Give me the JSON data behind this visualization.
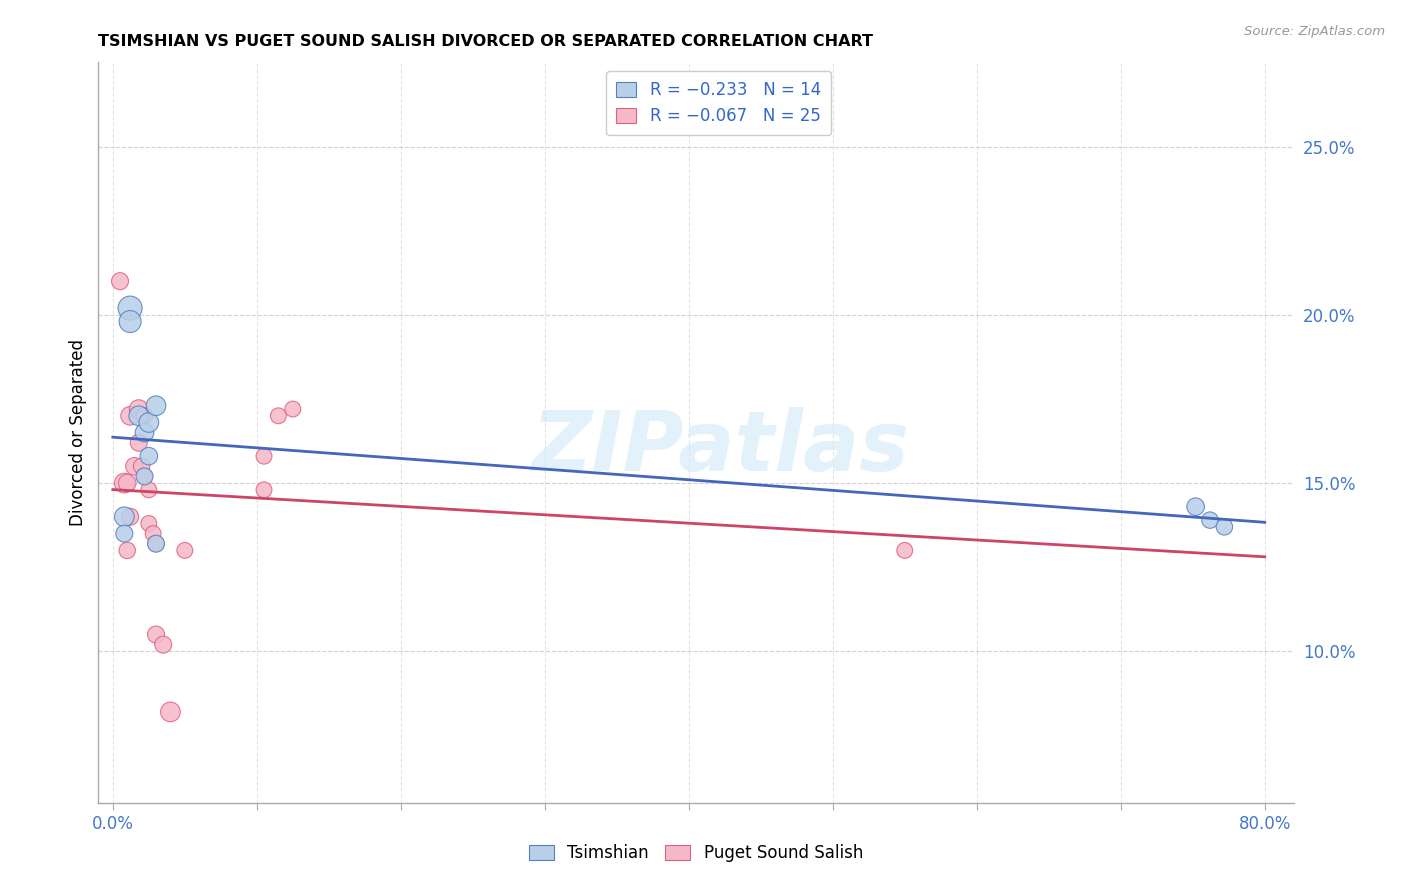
{
  "title": "TSIMSHIAN VS PUGET SOUND SALISH DIVORCED OR SEPARATED CORRELATION CHART",
  "source": "Source: ZipAtlas.com",
  "ylabel": "Divorced or Separated",
  "legend_labels": [
    "Tsimshian",
    "Puget Sound Salish"
  ],
  "legend_r": [
    "R = −0.233",
    "R = −0.067"
  ],
  "legend_n": [
    "N = 14",
    "N = 25"
  ],
  "xlim": [
    -0.01,
    0.82
  ],
  "ylim": [
    0.055,
    0.275
  ],
  "yticks": [
    0.1,
    0.15,
    0.2,
    0.25
  ],
  "ytick_labels": [
    "10.0%",
    "15.0%",
    "20.0%",
    "25.0%"
  ],
  "xtick_positions": [
    0.0,
    0.1,
    0.2,
    0.3,
    0.4,
    0.5,
    0.6,
    0.7,
    0.8
  ],
  "xtick_labels": [
    "0.0%",
    "",
    "",
    "",
    "",
    "",
    "",
    "",
    "80.0%"
  ],
  "blue_fill": "#b8cfe8",
  "pink_fill": "#f5b8c8",
  "blue_edge": "#5580c0",
  "pink_edge": "#e06080",
  "blue_line": "#4466bb",
  "pink_line": "#cc4466",
  "watermark": "ZIPatlas",
  "tsimshian_x": [
    0.008,
    0.008,
    0.012,
    0.012,
    0.018,
    0.022,
    0.022,
    0.025,
    0.025,
    0.03,
    0.03,
    0.752,
    0.762,
    0.772
  ],
  "tsimshian_y": [
    0.14,
    0.135,
    0.202,
    0.198,
    0.17,
    0.165,
    0.152,
    0.168,
    0.158,
    0.173,
    0.132,
    0.143,
    0.139,
    0.137
  ],
  "tsimshian_sizes": [
    200,
    150,
    300,
    250,
    200,
    180,
    150,
    200,
    160,
    200,
    150,
    160,
    140,
    140
  ],
  "puget_x": [
    0.005,
    0.008,
    0.01,
    0.01,
    0.012,
    0.012,
    0.015,
    0.018,
    0.018,
    0.02,
    0.022,
    0.022,
    0.025,
    0.025,
    0.028,
    0.03,
    0.03,
    0.035,
    0.04,
    0.05,
    0.105,
    0.115,
    0.125,
    0.55,
    0.105
  ],
  "puget_y": [
    0.21,
    0.15,
    0.15,
    0.13,
    0.17,
    0.14,
    0.155,
    0.172,
    0.162,
    0.155,
    0.17,
    0.152,
    0.148,
    0.138,
    0.135,
    0.132,
    0.105,
    0.102,
    0.082,
    0.13,
    0.148,
    0.17,
    0.172,
    0.13,
    0.158
  ],
  "puget_sizes": [
    150,
    200,
    160,
    140,
    180,
    150,
    160,
    180,
    150,
    140,
    140,
    130,
    130,
    130,
    130,
    130,
    150,
    150,
    200,
    130,
    130,
    130,
    130,
    130,
    130
  ]
}
